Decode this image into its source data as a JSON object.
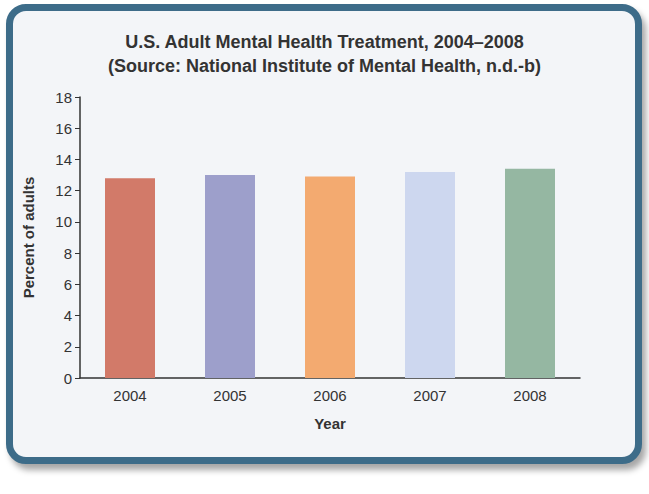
{
  "chart_data": {
    "type": "bar",
    "title": "U.S. Adult Mental Health Treatment, 2004–2008",
    "subtitle": "(Source: National Institute of Mental Health, n.d.-b)",
    "x_label": "Year",
    "y_label": "Percent of adults",
    "categories": [
      "2004",
      "2005",
      "2006",
      "2007",
      "2008"
    ],
    "values": [
      12.8,
      13.0,
      12.9,
      13.2,
      13.4
    ],
    "colors": [
      "#d27a69",
      "#9d9fcb",
      "#f3aa70",
      "#cdd7ef",
      "#95b7a2"
    ],
    "ylim": [
      0,
      18
    ],
    "yticks": [
      0,
      2,
      4,
      6,
      8,
      10,
      12,
      14,
      16,
      18
    ],
    "grid": false
  }
}
